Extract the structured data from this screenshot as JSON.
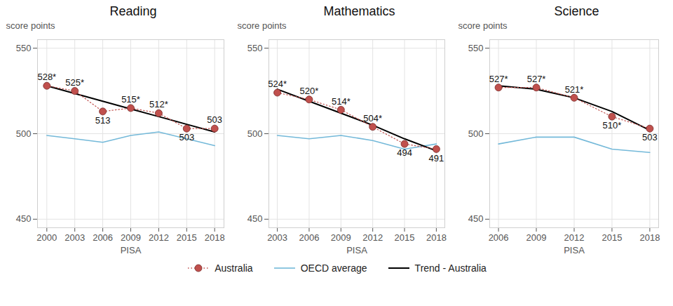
{
  "chart_data": [
    {
      "type": "line",
      "title": "Reading",
      "x_label": "PISA",
      "y_label": "score points",
      "x": [
        2000,
        2003,
        2006,
        2009,
        2012,
        2015,
        2018
      ],
      "xlim": [
        1999,
        2019
      ],
      "xticks": [
        2000,
        2003,
        2006,
        2009,
        2012,
        2015,
        2018
      ],
      "ylim": [
        445,
        555
      ],
      "yticks": [
        450,
        500,
        550
      ],
      "grid": true,
      "data_labels": true,
      "legend": "bottom",
      "series": [
        {
          "name": "Australia",
          "color": "#c0504d",
          "marker": "circle",
          "line_style": "dotted",
          "values": [
            528,
            525,
            513,
            515,
            512,
            503,
            503
          ],
          "value_labels": [
            "528*",
            "525*",
            "513",
            "515*",
            "512*",
            "503",
            "503"
          ]
        },
        {
          "name": "OECD average",
          "color": "#74b9d9",
          "line_style": "solid",
          "values": [
            499,
            497,
            495,
            499,
            501,
            497,
            493
          ]
        },
        {
          "name": "Trend - Australia",
          "color": "#000000",
          "line_style": "solid",
          "values": [
            528,
            523.5,
            519,
            514.5,
            510,
            505.5,
            501
          ]
        }
      ]
    },
    {
      "type": "line",
      "title": "Mathematics",
      "x_label": "PISA",
      "y_label": "score points",
      "x": [
        2003,
        2006,
        2009,
        2012,
        2015,
        2018
      ],
      "xlim": [
        2002.2,
        2018.8
      ],
      "xticks": [
        2003,
        2006,
        2009,
        2012,
        2015,
        2018
      ],
      "ylim": [
        445,
        555
      ],
      "yticks": [
        450,
        500,
        550
      ],
      "grid": true,
      "data_labels": true,
      "series": [
        {
          "name": "Australia",
          "color": "#c0504d",
          "marker": "circle",
          "line_style": "dotted",
          "values": [
            524,
            520,
            514,
            504,
            494,
            491
          ],
          "value_labels": [
            "524*",
            "520*",
            "514*",
            "504*",
            "494",
            "491"
          ]
        },
        {
          "name": "OECD average",
          "color": "#74b9d9",
          "line_style": "solid",
          "values": [
            499,
            497,
            499,
            496,
            491,
            494
          ]
        },
        {
          "name": "Trend - Australia",
          "color": "#000000",
          "line_style": "solid",
          "values": [
            526,
            519,
            512,
            505,
            497,
            490
          ]
        }
      ]
    },
    {
      "type": "line",
      "title": "Science",
      "x_label": "PISA",
      "y_label": "score points",
      "x": [
        2006,
        2009,
        2012,
        2015,
        2018
      ],
      "xlim": [
        2005.3,
        2018.7
      ],
      "xticks": [
        2006,
        2009,
        2012,
        2015,
        2018
      ],
      "ylim": [
        445,
        555
      ],
      "yticks": [
        450,
        500,
        550
      ],
      "grid": true,
      "data_labels": true,
      "series": [
        {
          "name": "Australia",
          "color": "#c0504d",
          "marker": "circle",
          "line_style": "dotted",
          "values": [
            527,
            527,
            521,
            510,
            503
          ],
          "value_labels": [
            "527*",
            "527*",
            "521*",
            "510*",
            "503"
          ]
        },
        {
          "name": "OECD average",
          "color": "#74b9d9",
          "line_style": "solid",
          "values": [
            494,
            498,
            498,
            491,
            489
          ]
        },
        {
          "name": "Trend - Australia",
          "color": "#000000",
          "line_style": "solid",
          "values": [
            528,
            526,
            521,
            513,
            502
          ]
        }
      ]
    }
  ]
}
